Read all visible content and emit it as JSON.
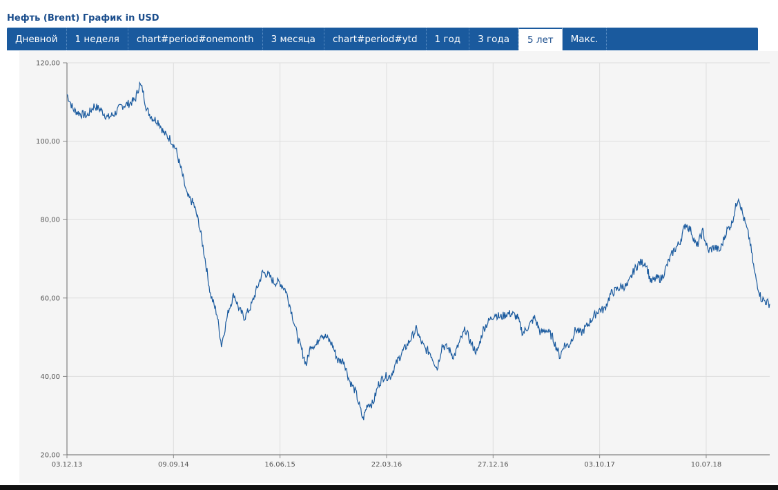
{
  "header": {
    "title": "Нефть (Brent) График in USD"
  },
  "tabs": [
    {
      "label": "Дневной",
      "name": "tab-daily",
      "active": false
    },
    {
      "label": "1 неделя",
      "name": "tab-1-week",
      "active": false
    },
    {
      "label": "chart#period#onemonth",
      "name": "tab-1-month",
      "active": false
    },
    {
      "label": "3 месяца",
      "name": "tab-3-months",
      "active": false
    },
    {
      "label": "chart#period#ytd",
      "name": "tab-ytd",
      "active": false
    },
    {
      "label": "1 год",
      "name": "tab-1-year",
      "active": false
    },
    {
      "label": "3 года",
      "name": "tab-3-years",
      "active": false
    },
    {
      "label": "5 лет",
      "name": "tab-5-years",
      "active": true
    },
    {
      "label": "Макс.",
      "name": "tab-max",
      "active": false
    }
  ],
  "colors": {
    "line": "#1a5a9e",
    "tabbar": "#1a5a9e",
    "title": "#1a4d8c",
    "grid": "#dddddd",
    "plot_bg": "#f5f5f5"
  },
  "chart_data": {
    "type": "line",
    "title": "",
    "xlabel": "",
    "ylabel": "",
    "ylim": [
      20,
      120
    ],
    "yticks": [
      "120,00",
      "100,00",
      "80,00",
      "60,00",
      "40,00",
      "20,00"
    ],
    "ytick_values": [
      120,
      100,
      80,
      60,
      40,
      20
    ],
    "xlim": [
      "2013-12-03",
      "2018-12-24"
    ],
    "xticks": [
      "03.12.13",
      "09.09.14",
      "16.06.15",
      "22.03.16",
      "27.12.16",
      "03.10.17",
      "10.07.18"
    ],
    "xtick_dates": [
      "2013-12-03",
      "2014-09-09",
      "2015-06-16",
      "2016-03-22",
      "2016-12-27",
      "2017-10-03",
      "2018-07-10"
    ],
    "grid": true,
    "series": [
      {
        "x": [
          "2013-12-03",
          "2013-12-20",
          "2014-01-07",
          "2014-01-25",
          "2014-02-12",
          "2014-03-02",
          "2014-03-20",
          "2014-04-07",
          "2014-04-25",
          "2014-05-13",
          "2014-05-31",
          "2014-06-12",
          "2014-06-20",
          "2014-07-01",
          "2014-07-15",
          "2014-08-01",
          "2014-08-15",
          "2014-09-01",
          "2014-09-15",
          "2014-10-01",
          "2014-10-15",
          "2014-11-01",
          "2014-11-15",
          "2014-12-01",
          "2014-12-15",
          "2015-01-01",
          "2015-01-13",
          "2015-02-01",
          "2015-02-15",
          "2015-03-01",
          "2015-03-15",
          "2015-04-01",
          "2015-04-15",
          "2015-05-01",
          "2015-05-15",
          "2015-06-01",
          "2015-06-15",
          "2015-07-01",
          "2015-07-15",
          "2015-08-01",
          "2015-08-24",
          "2015-09-05",
          "2015-09-20",
          "2015-10-01",
          "2015-10-15",
          "2015-11-01",
          "2015-11-15",
          "2015-12-01",
          "2015-12-15",
          "2016-01-01",
          "2016-01-20",
          "2016-02-01",
          "2016-02-15",
          "2016-03-01",
          "2016-03-15",
          "2016-04-01",
          "2016-04-15",
          "2016-05-01",
          "2016-05-15",
          "2016-06-08",
          "2016-06-20",
          "2016-07-01",
          "2016-07-15",
          "2016-08-02",
          "2016-08-15",
          "2016-09-01",
          "2016-09-15",
          "2016-10-01",
          "2016-10-15",
          "2016-11-01",
          "2016-11-15",
          "2016-12-01",
          "2016-12-15",
          "2017-01-01",
          "2017-01-15",
          "2017-02-01",
          "2017-02-15",
          "2017-03-01",
          "2017-03-15",
          "2017-04-01",
          "2017-04-15",
          "2017-05-01",
          "2017-05-15",
          "2017-06-01",
          "2017-06-21",
          "2017-07-01",
          "2017-07-15",
          "2017-08-01",
          "2017-08-15",
          "2017-09-01",
          "2017-09-15",
          "2017-10-01",
          "2017-10-15",
          "2017-11-01",
          "2017-11-15",
          "2017-12-01",
          "2017-12-15",
          "2018-01-01",
          "2018-01-15",
          "2018-02-01",
          "2018-02-15",
          "2018-03-01",
          "2018-03-15",
          "2018-04-01",
          "2018-04-15",
          "2018-05-01",
          "2018-05-17",
          "2018-06-01",
          "2018-06-15",
          "2018-07-01",
          "2018-07-15",
          "2018-08-01",
          "2018-08-15",
          "2018-09-01",
          "2018-09-15",
          "2018-10-03",
          "2018-10-15",
          "2018-11-01",
          "2018-11-15",
          "2018-12-01",
          "2018-12-15",
          "2018-12-24"
        ],
        "values": [
          112.0,
          108.0,
          107.0,
          106.5,
          109.0,
          108.0,
          106.0,
          107.0,
          109.0,
          109.5,
          110.5,
          114.5,
          113.0,
          108.0,
          106.0,
          105.0,
          102.0,
          100.5,
          98.0,
          92.0,
          86.0,
          84.0,
          79.0,
          70.0,
          61.0,
          56.0,
          48.0,
          57.0,
          61.0,
          57.0,
          55.0,
          58.0,
          62.0,
          66.5,
          66.0,
          64.0,
          64.0,
          62.0,
          57.0,
          50.0,
          43.0,
          48.0,
          48.0,
          51.0,
          50.0,
          48.0,
          44.0,
          44.0,
          39.0,
          36.0,
          29.0,
          33.0,
          33.0,
          38.0,
          40.0,
          40.0,
          43.0,
          46.0,
          48.0,
          52.0,
          49.0,
          47.0,
          46.0,
          42.0,
          48.0,
          47.0,
          45.0,
          49.0,
          52.0,
          48.0,
          46.0,
          52.0,
          54.0,
          56.0,
          55.0,
          56.0,
          56.0,
          55.0,
          51.0,
          53.0,
          55.0,
          51.0,
          52.0,
          50.0,
          45.0,
          48.0,
          48.0,
          52.0,
          51.0,
          53.0,
          55.0,
          57.0,
          57.0,
          61.0,
          62.0,
          63.0,
          63.0,
          67.0,
          69.0,
          69.0,
          64.0,
          65.0,
          65.0,
          69.0,
          72.0,
          74.0,
          79.0,
          77.0,
          73.0,
          77.0,
          72.0,
          73.0,
          72.0,
          77.0,
          79.0,
          86.0,
          81.0,
          75.0,
          66.0,
          60.0,
          59.0,
          58.5
        ]
      }
    ]
  }
}
